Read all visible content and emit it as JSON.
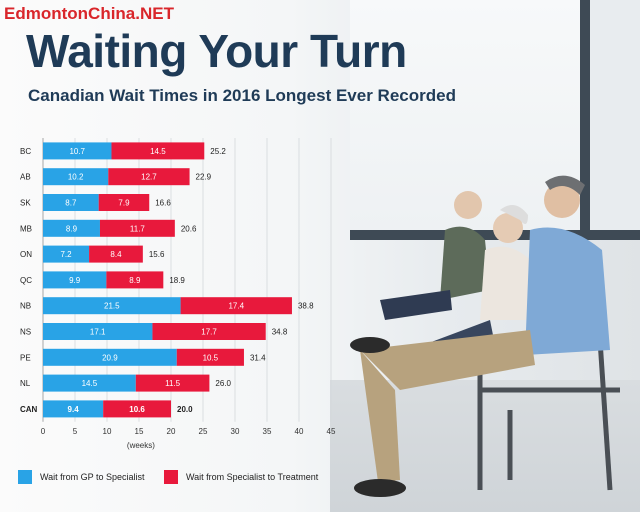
{
  "watermark": "EdmontonChina.NET",
  "title": "Waiting Your Turn",
  "subtitle": "Canadian Wait Times in 2016 Longest Ever Recorded",
  "colors": {
    "gp": "#29a3e6",
    "spec": "#e8193c",
    "title": "#1f3b57"
  },
  "chart_data": {
    "type": "bar",
    "orientation": "horizontal",
    "stacked": true,
    "categories": [
      "BC",
      "AB",
      "SK",
      "MB",
      "ON",
      "QC",
      "NB",
      "NS",
      "PE",
      "NL",
      "CAN"
    ],
    "series": [
      {
        "name": "Wait from GP to Specialist",
        "values": [
          10.7,
          10.2,
          8.7,
          8.9,
          7.2,
          9.9,
          21.5,
          17.1,
          20.9,
          14.5,
          9.4
        ]
      },
      {
        "name": "Wait from Specialist to Treatment",
        "values": [
          14.5,
          12.7,
          7.9,
          11.7,
          8.4,
          8.9,
          17.4,
          17.7,
          10.5,
          11.5,
          10.6
        ]
      }
    ],
    "totals": [
      25.2,
      22.9,
      16.6,
      20.6,
      15.6,
      18.9,
      38.8,
      34.8,
      31.4,
      26.0,
      20.0
    ],
    "value_labels": {
      "gp": [
        "10.7",
        "10.2",
        "8.7",
        "8.9",
        "7.2",
        "9.9",
        "21.5",
        "17.1",
        "20.9",
        "14.5",
        "9.4"
      ],
      "spec": [
        "14.5",
        "12.7",
        "7.9",
        "11.7",
        "8.4",
        "8.9",
        "17.4",
        "17.7",
        "10.5",
        "11.5",
        "10.6"
      ],
      "total": [
        "25.2",
        "22.9",
        "16.6",
        "20.6",
        "15.6",
        "18.9",
        "38.8",
        "34.8",
        "31.4",
        "26.0",
        "20.0"
      ]
    },
    "xlim": [
      0,
      45
    ],
    "xticks": [
      0,
      5,
      10,
      15,
      20,
      25,
      30,
      35,
      40,
      45
    ],
    "xlabel": "(weeks)",
    "grid": true,
    "legend": "bottom"
  }
}
